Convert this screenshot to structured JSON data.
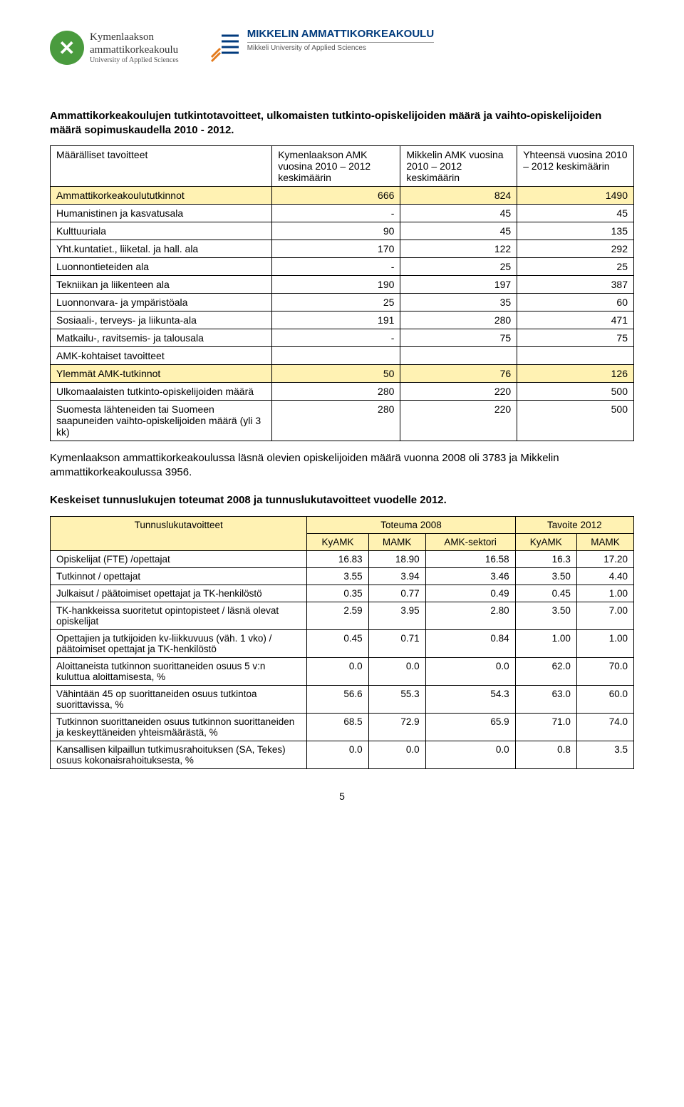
{
  "logos": {
    "kymenlaakso": {
      "line1": "Kymenlaakson",
      "line2": "ammattikorkeakoulu",
      "sub": "University of Applied Sciences"
    },
    "mikkeli": {
      "main": "MIKKELIN AMMATTIKORKEAKOULU",
      "sub": "Mikkeli University of Applied Sciences"
    }
  },
  "heading1": "Ammattikorkeakoulujen tutkintotavoitteet, ulkomaisten tutkinto-opiskelijoiden määrä ja vaihto-opiskelijoiden määrä sopimuskaudella 2010 - 2012.",
  "table1": {
    "headers": {
      "col0": "Määrälliset tavoitteet",
      "col1": "Kymenlaakson AMK vuosina 2010 – 2012 keskimäärin",
      "col2": "Mikkelin AMK vuosina 2010 – 2012 keskimäärin",
      "col3": "Yhteensä vuosina 2010 – 2012 keskimäärin"
    },
    "rows": [
      {
        "label": "Ammattikorkeakoulututkinnot",
        "c1": "666",
        "c2": "824",
        "c3": "1490",
        "hl": true
      },
      {
        "label": "Humanistinen ja kasvatusala",
        "c1": "-",
        "c2": "45",
        "c3": "45"
      },
      {
        "label": "Kulttuuriala",
        "c1": "90",
        "c2": "45",
        "c3": "135"
      },
      {
        "label": "Yht.kuntatiet., liiketal. ja hall. ala",
        "c1": "170",
        "c2": "122",
        "c3": "292"
      },
      {
        "label": "Luonnontieteiden ala",
        "c1": "-",
        "c2": "25",
        "c3": "25"
      },
      {
        "label": "Tekniikan ja liikenteen ala",
        "c1": "190",
        "c2": "197",
        "c3": "387"
      },
      {
        "label": "Luonnonvara- ja ympäristöala",
        "c1": "25",
        "c2": "35",
        "c3": "60"
      },
      {
        "label": "Sosiaali-, terveys- ja liikunta-ala",
        "c1": "191",
        "c2": "280",
        "c3": "471"
      },
      {
        "label": "Matkailu-, ravitsemis- ja talousala",
        "c1": "-",
        "c2": "75",
        "c3": "75"
      },
      {
        "label": "AMK-kohtaiset tavoitteet",
        "c1": "",
        "c2": "",
        "c3": ""
      },
      {
        "label": "Ylemmät AMK-tutkinnot",
        "c1": "50",
        "c2": "76",
        "c3": "126",
        "hl": true
      },
      {
        "label": "Ulkomaalaisten tutkinto-opiskelijoiden määrä",
        "c1": "280",
        "c2": "220",
        "c3": "500"
      },
      {
        "label": "Suomesta lähteneiden tai Suomeen saapuneiden vaihto-opiskelijoiden määrä (yli 3 kk)",
        "c1": "280",
        "c2": "220",
        "c3": "500"
      }
    ]
  },
  "para1": "Kymenlaakson ammattikorkeakoulussa läsnä olevien opiskelijoiden määrä vuonna 2008 oli 3783 ja Mikkelin ammattikorkeakoulussa 3956.",
  "heading2": "Keskeiset tunnuslukujen toteumat 2008 ja tunnuslukutavoitteet vuodelle 2012.",
  "table2": {
    "headers": {
      "main": "Tunnuslukutavoitteet",
      "toteuma": "Toteuma 2008",
      "tavoite": "Tavoite 2012",
      "kyamk": "KyAMK",
      "mamk": "MAMK",
      "amksektori": "AMK-sektori"
    },
    "rows": [
      {
        "label": "Opiskelijat (FTE) /opettajat",
        "v": [
          "16.83",
          "18.90",
          "16.58",
          "16.3",
          "17.20"
        ]
      },
      {
        "label": "Tutkinnot  / opettajat",
        "v": [
          "3.55",
          "3.94",
          "3.46",
          "3.50",
          "4.40"
        ]
      },
      {
        "label": "Julkaisut / päätoimiset opettajat ja TK-henkilöstö",
        "v": [
          "0.35",
          "0.77",
          "0.49",
          "0.45",
          "1.00"
        ]
      },
      {
        "label": "TK-hankkeissa suoritetut opintopisteet / läsnä olevat opiskelijat",
        "v": [
          "2.59",
          "3.95",
          "2.80",
          "3.50",
          "7.00"
        ]
      },
      {
        "label": "Opettajien ja tutkijoiden kv-liikkuvuus (väh. 1 vko) / päätoimiset  opettajat ja TK-henkilöstö",
        "v": [
          "0.45",
          "0.71",
          "0.84",
          "1.00",
          "1.00"
        ]
      },
      {
        "label": "Aloittaneista tutkinnon suorittaneiden osuus 5 v:n kuluttua aloittamisesta, %",
        "v": [
          "0.0",
          "0.0",
          "0.0",
          "62.0",
          "70.0"
        ]
      },
      {
        "label": "Vähintään 45 op suorittaneiden osuus tutkintoa suorittavissa, %",
        "v": [
          "56.6",
          "55.3",
          "54.3",
          "63.0",
          "60.0"
        ]
      },
      {
        "label": "Tutkinnon suorittaneiden osuus tutkinnon suorittaneiden ja keskeyttäneiden yhteismäärästä, %",
        "v": [
          "68.5",
          "72.9",
          "65.9",
          "71.0",
          "74.0"
        ]
      },
      {
        "label": "Kansallisen kilpaillun tutkimusrahoituksen (SA, Tekes) osuus kokonaisrahoituksesta, %",
        "v": [
          "0.0",
          "0.0",
          "0.0",
          "0.8",
          "3.5"
        ]
      }
    ]
  },
  "pageNumber": "5",
  "colors": {
    "highlight": "#fff2b3",
    "border": "#000000",
    "text": "#000000",
    "logo_green": "#4a9b3e",
    "logo_blue": "#003a7c",
    "logo_orange": "#e37b1e"
  }
}
